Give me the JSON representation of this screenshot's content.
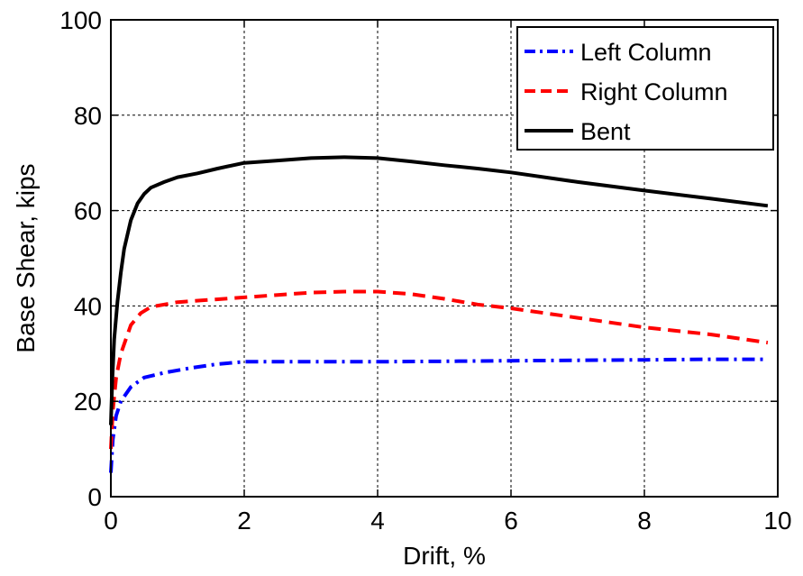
{
  "chart_data": {
    "type": "line",
    "title": "",
    "xlabel": "Drift, %",
    "ylabel": "Base Shear, kips",
    "xlim": [
      0,
      10
    ],
    "ylim": [
      0,
      100
    ],
    "xticks": [
      "0",
      "2",
      "4",
      "6",
      "8",
      "10"
    ],
    "yticks": [
      "0",
      "20",
      "40",
      "60",
      "80",
      "100"
    ],
    "grid": true,
    "legend_position": "top-right",
    "series": [
      {
        "name": "Left Column",
        "color": "#0000ff",
        "style": "dash-dot",
        "x": [
          0,
          0.03,
          0.08,
          0.15,
          0.3,
          0.5,
          0.8,
          1.2,
          1.6,
          2.0,
          3.0,
          4.0,
          5.0,
          6.0,
          7.0,
          8.0,
          9.0,
          9.85
        ],
        "y": [
          5,
          12,
          17,
          20,
          23,
          25,
          26,
          27,
          27.8,
          28.3,
          28.3,
          28.3,
          28.4,
          28.5,
          28.6,
          28.7,
          28.8,
          28.8
        ]
      },
      {
        "name": "Right Column",
        "color": "#ff0000",
        "style": "dashed",
        "x": [
          0,
          0.03,
          0.08,
          0.15,
          0.3,
          0.45,
          0.6,
          1.0,
          1.5,
          2.0,
          2.5,
          3.0,
          3.5,
          4.0,
          4.5,
          5.0,
          5.5,
          6.0,
          7.0,
          8.0,
          9.0,
          9.85
        ],
        "y": [
          10,
          18,
          25,
          30,
          36,
          38.5,
          39.8,
          40.8,
          41.3,
          41.8,
          42.3,
          42.8,
          43,
          43,
          42.5,
          41.5,
          40.3,
          39.5,
          37.5,
          35.5,
          34,
          32.3
        ]
      },
      {
        "name": "Bent",
        "color": "#000000",
        "style": "solid",
        "x": [
          0,
          0.02,
          0.05,
          0.1,
          0.15,
          0.2,
          0.3,
          0.4,
          0.5,
          0.6,
          0.8,
          1.0,
          1.3,
          1.6,
          2.0,
          2.5,
          3.0,
          3.5,
          4.0,
          4.5,
          5.0,
          5.5,
          6.0,
          7.0,
          8.0,
          9.0,
          9.85
        ],
        "y": [
          15,
          24,
          33,
          41,
          47,
          52,
          58,
          61.5,
          63.5,
          64.8,
          66,
          67,
          67.8,
          68.8,
          70,
          70.5,
          71,
          71.2,
          71,
          70.3,
          69.5,
          68.8,
          68,
          66,
          64.2,
          62.5,
          61
        ]
      }
    ]
  }
}
